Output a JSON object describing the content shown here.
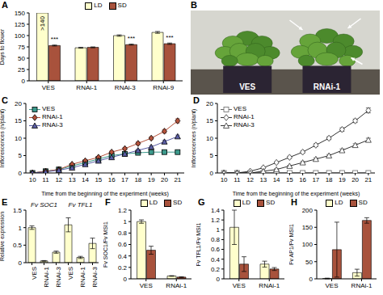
{
  "chart_data": [
    {
      "panel": "A",
      "type": "bar",
      "y_label": "Days to flower",
      "categories": [
        "VES",
        "RNAi-1",
        "RNAi-3",
        "RNAi-9"
      ],
      "series": [
        {
          "name": "LD",
          "color": "#ffffcc",
          "values": [
            150,
            73,
            100,
            107
          ],
          "errors": [
            0,
            1,
            1.5,
            2
          ],
          "value_labels": [
            ">140",
            null,
            null,
            null
          ]
        },
        {
          "name": "SD",
          "color": "#a8523c",
          "values": [
            78,
            74,
            80,
            82
          ],
          "errors": [
            1,
            1,
            1,
            1.5
          ]
        }
      ],
      "annotations": [
        "***",
        null,
        "***",
        "***"
      ],
      "ylim": [
        0,
        150
      ],
      "yticks": [
        0,
        25,
        50,
        75,
        100,
        125,
        150
      ],
      "legend": "top"
    },
    {
      "panel": "B",
      "type": "image",
      "labels": [
        "VES",
        "RNAi-1"
      ]
    },
    {
      "panel": "C",
      "type": "line",
      "x_label": "Time from the beginning of the experiment (weeks)",
      "y_label": "Inflorescences (n/plant)",
      "x": [
        10,
        11,
        12,
        13,
        14,
        15,
        16,
        17,
        18,
        19,
        20,
        21
      ],
      "series": [
        {
          "name": "VES",
          "color": "#3c9a8c",
          "marker": "square",
          "values": [
            0,
            0.5,
            1,
            2,
            3,
            4,
            5,
            5.5,
            5.8,
            6,
            6,
            6
          ],
          "errors": [
            0,
            0,
            0,
            0.2,
            0.2,
            0.3,
            0.3,
            0.3,
            0.4,
            0.4,
            0.4,
            0.4
          ]
        },
        {
          "name": "RNAi-1",
          "color": "#b5523b",
          "marker": "diamond",
          "values": [
            0,
            0.5,
            1,
            2.5,
            3.5,
            4.5,
            6,
            7,
            8.5,
            10,
            12,
            15
          ],
          "errors": [
            0,
            0,
            0,
            0.2,
            0.2,
            0.3,
            0.3,
            0.3,
            0.4,
            0.4,
            0.5,
            0.6
          ]
        },
        {
          "name": "RNAi-3",
          "color": "#5b5ea6",
          "marker": "triangle",
          "values": [
            0,
            0.3,
            0.8,
            1.5,
            2.5,
            3.5,
            4.5,
            5.5,
            6.5,
            7.5,
            9,
            10.5
          ],
          "errors": [
            0,
            0,
            0,
            0.2,
            0.2,
            0.2,
            0.3,
            0.3,
            0.3,
            0.3,
            0.4,
            0.4
          ]
        }
      ],
      "xlim": [
        9.5,
        21.5
      ],
      "xticks": [
        10,
        11,
        12,
        13,
        14,
        15,
        16,
        17,
        18,
        19,
        20,
        21
      ],
      "ylim": [
        0,
        20
      ],
      "yticks": [
        0,
        5,
        10,
        15,
        20
      ],
      "legend": "top left"
    },
    {
      "panel": "D",
      "type": "line",
      "x_label": "Time from the beginning of the experiment (weeks)",
      "y_label": "Inflorescences (n/plant)",
      "x": [
        10,
        11,
        12,
        13,
        14,
        15,
        16,
        17,
        18,
        19,
        20,
        21
      ],
      "series": [
        {
          "name": "VES",
          "color": "#666666",
          "marker": "open square",
          "values": [
            0,
            0,
            0,
            0,
            0,
            0,
            0,
            0,
            0,
            0,
            0,
            0
          ],
          "errors": [
            0,
            0,
            0,
            0,
            0,
            0,
            0,
            0,
            0,
            0,
            0,
            0
          ]
        },
        {
          "name": "RNAi-1",
          "color": "#333333",
          "marker": "open diamond",
          "values": [
            0,
            0,
            0.5,
            1.5,
            3,
            4.5,
            6,
            8,
            10,
            12.5,
            15,
            18
          ],
          "errors": [
            0,
            0,
            0,
            0.2,
            0.2,
            0.3,
            0.3,
            0.4,
            0.4,
            0.5,
            0.5,
            0.7
          ]
        },
        {
          "name": "RNAi-3",
          "color": "#333333",
          "marker": "open triangle",
          "values": [
            0,
            0,
            0,
            0.5,
            1,
            2,
            3,
            4,
            5,
            6.5,
            8,
            9.5
          ],
          "errors": [
            0,
            0,
            0,
            0.1,
            0.2,
            0.2,
            0.3,
            0.3,
            0.3,
            0.4,
            0.4,
            0.5
          ]
        }
      ],
      "xlim": [
        9.5,
        21.5
      ],
      "xticks": [
        10,
        11,
        12,
        13,
        14,
        15,
        16,
        17,
        18,
        19,
        20,
        21
      ],
      "ylim": [
        0,
        20
      ],
      "yticks": [
        0,
        5,
        10,
        15,
        20
      ],
      "legend": "top left"
    },
    {
      "panel": "E",
      "type": "bar",
      "y_label": "Relative expression",
      "categories": [
        "VES",
        "RNAi-1",
        "RNAi-3",
        "VES",
        "RNAi-1",
        "RNAi-3"
      ],
      "group_labels": [
        "Fv SOC1",
        "Fv SOC1",
        "Fv SOC1",
        "Fv TFL1",
        "Fv TFL1",
        "Fv TFL1"
      ],
      "color": "#ffffcc",
      "values": [
        1.0,
        0.05,
        0.3,
        1.08,
        0.15,
        0.55
      ],
      "errors": [
        0.05,
        0.01,
        0.03,
        0.2,
        0.03,
        0.15
      ],
      "ylim": [
        0,
        1.5
      ],
      "yticks": [
        0,
        0.5,
        1,
        1.5
      ]
    },
    {
      "panel": "F",
      "type": "bar",
      "y_label": "Fv SOC1/Fv MSI1",
      "categories": [
        "VES",
        "RNAi-1"
      ],
      "series": [
        {
          "name": "LD",
          "color": "#ffffcc",
          "values": [
            1.0,
            0.05
          ],
          "errors": [
            0.03,
            0.005
          ]
        },
        {
          "name": "SD",
          "color": "#a8523c",
          "values": [
            0.5,
            0.03
          ],
          "errors": [
            0.07,
            0.005
          ]
        }
      ],
      "ylim": [
        0,
        1.2
      ],
      "yticks": [
        0,
        0.2,
        0.4,
        0.6,
        0.8,
        1,
        1.2
      ],
      "legend": "top"
    },
    {
      "panel": "G",
      "type": "bar",
      "y_label": "Fv TFL1/Fv MSI1",
      "categories": [
        "VES",
        "RNAi-1"
      ],
      "series": [
        {
          "name": "LD",
          "color": "#ffffcc",
          "values": [
            1.05,
            0.3
          ],
          "errors": [
            0.35,
            0.06
          ]
        },
        {
          "name": "SD",
          "color": "#a8523c",
          "values": [
            0.3,
            0.2
          ],
          "errors": [
            0.15,
            0.03
          ]
        }
      ],
      "ylim": [
        0,
        1.4
      ],
      "yticks": [
        0,
        0.2,
        0.4,
        0.6,
        0.8,
        1,
        1.2,
        1.4
      ],
      "legend": "top"
    },
    {
      "panel": "H",
      "type": "bar",
      "y_label": "Fv AP1/Fv MSI1",
      "categories": [
        "VES",
        "RNAi-1"
      ],
      "series": [
        {
          "name": "LD",
          "color": "#ffffcc",
          "values": [
            1,
            18
          ],
          "errors": [
            1,
            10
          ]
        },
        {
          "name": "SD",
          "color": "#a8523c",
          "values": [
            85,
            170
          ],
          "errors": [
            80,
            8
          ]
        }
      ],
      "ylim": [
        0,
        200
      ],
      "yticks": [
        0,
        50,
        100,
        150,
        200
      ],
      "legend": "top"
    }
  ]
}
